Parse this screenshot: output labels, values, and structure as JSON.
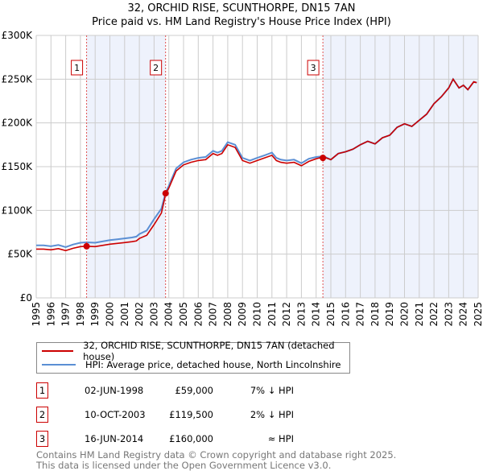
{
  "chart_data": {
    "type": "line",
    "title": "32, ORCHID RISE, SCUNTHORPE, DN15 7AN",
    "subtitle": "Price paid vs. HM Land Registry's House Price Index (HPI)",
    "xlim": [
      1995,
      2025
    ],
    "ylim": [
      0,
      300000
    ],
    "yticks": [
      {
        "v": 0,
        "label": "£0"
      },
      {
        "v": 50000,
        "label": "£50K"
      },
      {
        "v": 100000,
        "label": "£100K"
      },
      {
        "v": 150000,
        "label": "£150K"
      },
      {
        "v": 200000,
        "label": "£200K"
      },
      {
        "v": 250000,
        "label": "£250K"
      },
      {
        "v": 300000,
        "label": "£300K"
      }
    ],
    "xticks": [
      "1995",
      "1996",
      "1997",
      "1998",
      "1999",
      "2000",
      "2001",
      "2002",
      "2003",
      "2004",
      "2005",
      "2006",
      "2007",
      "2008",
      "2009",
      "2010",
      "2011",
      "2012",
      "2013",
      "2014",
      "2015",
      "2016",
      "2017",
      "2018",
      "2019",
      "2020",
      "2021",
      "2022",
      "2023",
      "2024",
      "2025"
    ],
    "grid": true,
    "series": [
      {
        "name": "HPI: Average price, detached house, North Lincolnshire",
        "color": "#5b8fd4",
        "x": [
          1995,
          1995.5,
          1996,
          1996.5,
          1997,
          1997.5,
          1998,
          1998.4,
          1999,
          1999.5,
          2000,
          2000.5,
          2001,
          2001.5,
          2001.8,
          2002,
          2002.5,
          2003,
          2003.5,
          2003.8,
          2004,
          2004.5,
          2005,
          2005.5,
          2006,
          2006.5,
          2007,
          2007.3,
          2007.6,
          2008,
          2008.5,
          2009,
          2009.5,
          2010,
          2010.5,
          2011,
          2011.3,
          2011.6,
          2012,
          2012.5,
          2013,
          2013.5,
          2014,
          2014.5,
          2015,
          2015.5,
          2016,
          2016.5,
          2017,
          2017.5,
          2018,
          2018.5,
          2019,
          2019.5,
          2020,
          2020.5,
          2021,
          2021.5,
          2022,
          2022.5,
          2023,
          2023.3,
          2023.7,
          2024,
          2024.3,
          2024.7,
          2024.9
        ],
        "y": [
          60000,
          60000,
          59000,
          60500,
          58000,
          61000,
          63000,
          63500,
          63000,
          64500,
          66000,
          67000,
          68000,
          69000,
          70000,
          73000,
          77000,
          90000,
          102000,
          121000,
          128000,
          148000,
          155000,
          158000,
          160000,
          161000,
          168000,
          166000,
          168000,
          178000,
          175000,
          160000,
          157000,
          160000,
          163000,
          166000,
          160000,
          158000,
          157000,
          158000,
          154000,
          159000,
          161000,
          162000,
          158000,
          165000,
          167000,
          170000,
          175000,
          179000,
          176000,
          183000,
          186000,
          195000,
          199000,
          196000,
          203000,
          210000,
          222000,
          230000,
          240000,
          250000,
          240000,
          243000,
          238000,
          247000,
          246000
        ]
      },
      {
        "name": "32, ORCHID RISE, SCUNTHORPE, DN15 7AN (detached house)",
        "color": "#cc0000",
        "x": [
          1995,
          1995.5,
          1996,
          1996.5,
          1997,
          1997.5,
          1998,
          1998.4,
          1999,
          1999.5,
          2000,
          2000.5,
          2001,
          2001.5,
          2001.8,
          2002,
          2002.5,
          2003,
          2003.5,
          2003.8,
          2004,
          2004.5,
          2005,
          2005.5,
          2006,
          2006.5,
          2007,
          2007.3,
          2007.6,
          2008,
          2008.5,
          2009,
          2009.5,
          2010,
          2010.5,
          2011,
          2011.3,
          2011.6,
          2012,
          2012.5,
          2013,
          2013.5,
          2014,
          2014.5,
          2015,
          2015.5,
          2016,
          2016.5,
          2017,
          2017.5,
          2018,
          2018.5,
          2019,
          2019.5,
          2020,
          2020.5,
          2021,
          2021.5,
          2022,
          2022.5,
          2023,
          2023.3,
          2023.7,
          2024,
          2024.3,
          2024.7,
          2024.9
        ],
        "y": [
          55800,
          55800,
          54900,
          56300,
          54000,
          56700,
          58600,
          59000,
          58600,
          60000,
          61400,
          62300,
          63200,
          64200,
          65100,
          67900,
          71600,
          83700,
          97000,
          119500,
          125400,
          145000,
          152000,
          155000,
          157000,
          158000,
          165000,
          163000,
          165000,
          175000,
          172000,
          157000,
          154000,
          157000,
          160000,
          163000,
          157000,
          155000,
          154000,
          155000,
          151000,
          156000,
          159000,
          161000,
          158000,
          165000,
          167000,
          170000,
          175000,
          179000,
          176000,
          183000,
          186000,
          195000,
          199000,
          196000,
          203000,
          210000,
          222000,
          230000,
          240000,
          250000,
          240000,
          243000,
          238000,
          247000,
          246000
        ]
      }
    ],
    "sales": [
      {
        "n": "1",
        "x": 1998.42,
        "y": 59000,
        "date": "02-JUN-1998",
        "price": "£59,000",
        "hpi": "7% ↓ HPI"
      },
      {
        "n": "2",
        "x": 2003.78,
        "y": 119500,
        "date": "10-OCT-2003",
        "price": "£119,500",
        "hpi": "2% ↓ HPI"
      },
      {
        "n": "3",
        "x": 2014.46,
        "y": 160000,
        "date": "16-JUN-2014",
        "price": "£160,000",
        "hpi": "≈ HPI"
      }
    ],
    "shade_color": "#eef2fc"
  },
  "legend": {
    "property": "32, ORCHID RISE, SCUNTHORPE, DN15 7AN (detached house)",
    "hpi": "HPI: Average price, detached house, North Lincolnshire"
  },
  "footer": {
    "line1": "Contains HM Land Registry data © Crown copyright and database right 2025.",
    "line2": "This data is licensed under the Open Government Licence v3.0."
  }
}
